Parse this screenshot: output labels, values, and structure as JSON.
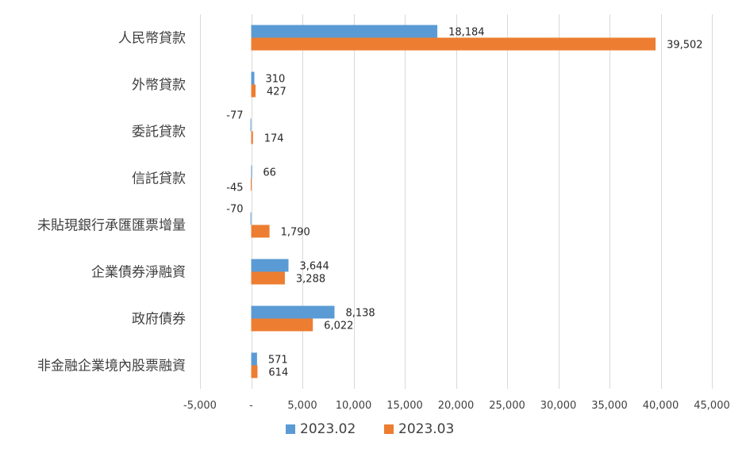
{
  "chart_data": {
    "type": "bar",
    "orientation": "horizontal",
    "title": "",
    "xlabel": "",
    "ylabel": "",
    "categories": [
      "人民幣貸款",
      "外幣貸款",
      "委託貸款",
      "信託貸款",
      "未貼現銀行承匯匯票增量",
      "企業債券淨融資",
      "政府債券",
      "非金融企業境內股票融資"
    ],
    "series": [
      {
        "name": "2023.02",
        "color": "#5B9BD5",
        "values": [
          18184,
          310,
          -77,
          66,
          -70,
          3644,
          8138,
          571
        ]
      },
      {
        "name": "2023.03",
        "color": "#ED7D31",
        "values": [
          39502,
          427,
          174,
          -45,
          1790,
          3288,
          6022,
          614
        ]
      }
    ],
    "data_labels": [
      [
        "18,184",
        "310",
        "-77",
        "66",
        "-70",
        "3,644",
        "8,138",
        "571"
      ],
      [
        "39,502",
        "427",
        "174",
        "-45",
        "1,790",
        "3,288",
        "6,022",
        "614"
      ]
    ],
    "xlim": [
      -5000,
      45000
    ],
    "xticks": [
      -5000,
      0,
      5000,
      10000,
      15000,
      20000,
      25000,
      30000,
      35000,
      40000,
      45000
    ],
    "xtick_labels": [
      "-5,000",
      "-",
      "5,000",
      "10,000",
      "15,000",
      "20,000",
      "25,000",
      "30,000",
      "35,000",
      "40,000",
      "45,000"
    ],
    "grid": true,
    "legend_position": "bottom"
  }
}
